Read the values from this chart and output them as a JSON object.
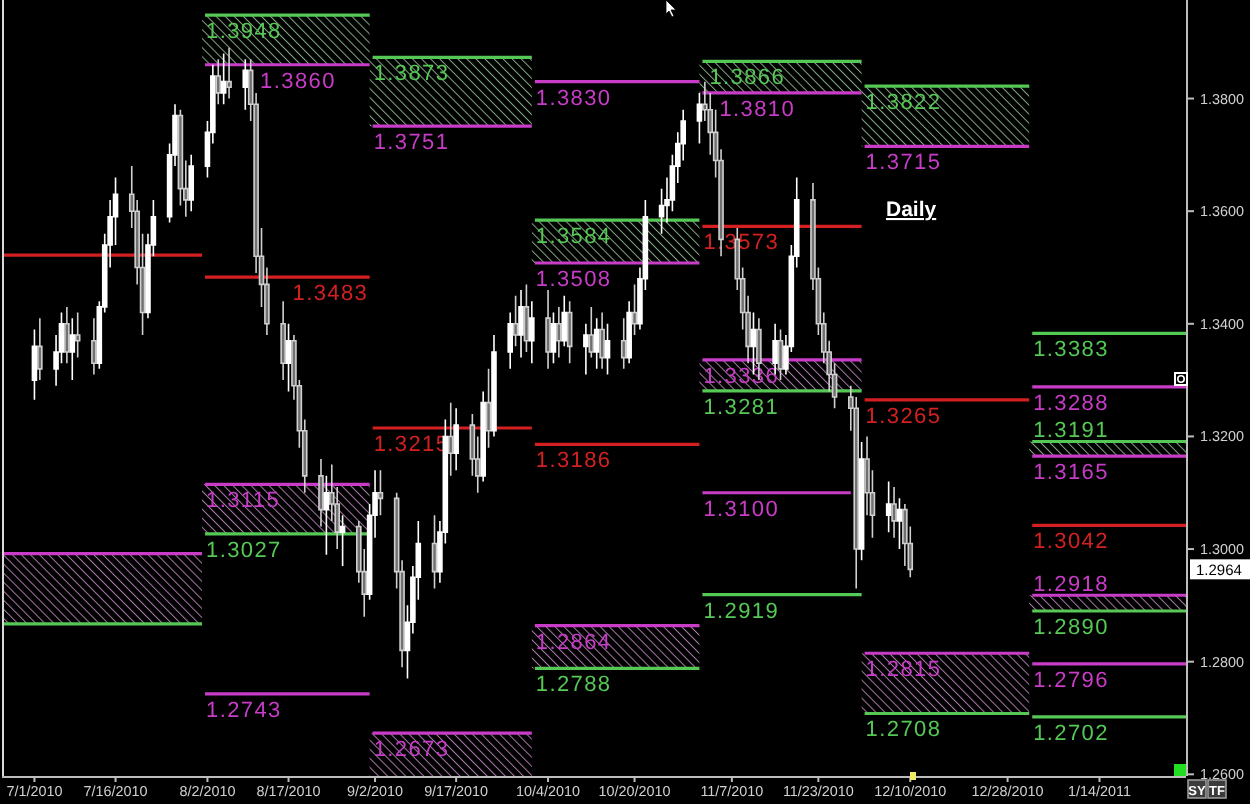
{
  "chart_data": {
    "type": "candlestick",
    "title": "Daily",
    "x": [
      "2010-07-01",
      "2010-07-02",
      "2010-07-05",
      "2010-07-06",
      "2010-07-07",
      "2010-07-08",
      "2010-07-09",
      "2010-07-12",
      "2010-07-13",
      "2010-07-14",
      "2010-07-15",
      "2010-07-16",
      "2010-07-19",
      "2010-07-20",
      "2010-07-21",
      "2010-07-22",
      "2010-07-23",
      "2010-07-26",
      "2010-07-27",
      "2010-07-28",
      "2010-07-29",
      "2010-07-30",
      "2010-08-02",
      "2010-08-03",
      "2010-08-04",
      "2010-08-05",
      "2010-08-06",
      "2010-08-09",
      "2010-08-10",
      "2010-08-11",
      "2010-08-12",
      "2010-08-13",
      "2010-08-16",
      "2010-08-17",
      "2010-08-18",
      "2010-08-19",
      "2010-08-20",
      "2010-08-23",
      "2010-08-24",
      "2010-08-25",
      "2010-08-26",
      "2010-08-27",
      "2010-08-30",
      "2010-08-31",
      "2010-09-01",
      "2010-09-02",
      "2010-09-03",
      "2010-09-06",
      "2010-09-07",
      "2010-09-08",
      "2010-09-09",
      "2010-09-10",
      "2010-09-13",
      "2010-09-14",
      "2010-09-15",
      "2010-09-16",
      "2010-09-17",
      "2010-09-20",
      "2010-09-21",
      "2010-09-22",
      "2010-09-23",
      "2010-09-24",
      "2010-09-27",
      "2010-09-28",
      "2010-09-29",
      "2010-09-30",
      "2010-10-01",
      "2010-10-04",
      "2010-10-05",
      "2010-10-06",
      "2010-10-07",
      "2010-10-08",
      "2010-10-11",
      "2010-10-12",
      "2010-10-13",
      "2010-10-14",
      "2010-10-15",
      "2010-10-18",
      "2010-10-19",
      "2010-10-20",
      "2010-10-21",
      "2010-10-22",
      "2010-10-25",
      "2010-10-26",
      "2010-10-27",
      "2010-10-28",
      "2010-10-29",
      "2010-11-01",
      "2010-11-02",
      "2010-11-03",
      "2010-11-04",
      "2010-11-05",
      "2010-11-08",
      "2010-11-09",
      "2010-11-10",
      "2010-11-11",
      "2010-11-12",
      "2010-11-15",
      "2010-11-16",
      "2010-11-17",
      "2010-11-18",
      "2010-11-19",
      "2010-11-22",
      "2010-11-23",
      "2010-11-24",
      "2010-11-25",
      "2010-11-26",
      "2010-11-29",
      "2010-11-30",
      "2010-12-01",
      "2010-12-02",
      "2010-12-03",
      "2010-12-06",
      "2010-12-07",
      "2010-12-08",
      "2010-12-09",
      "2010-12-10"
    ],
    "ohlc": [
      [
        1.33,
        1.339,
        1.3265,
        1.336
      ],
      [
        1.336,
        1.341,
        1.33,
        1.332
      ],
      [
        1.332,
        1.338,
        1.329,
        1.335
      ],
      [
        1.335,
        1.342,
        1.333,
        1.34
      ],
      [
        1.34,
        1.343,
        1.333,
        1.335
      ],
      [
        1.335,
        1.341,
        1.33,
        1.338
      ],
      [
        1.338,
        1.342,
        1.334,
        1.337
      ],
      [
        1.337,
        1.341,
        1.331,
        1.333
      ],
      [
        1.333,
        1.344,
        1.332,
        1.343
      ],
      [
        1.343,
        1.356,
        1.342,
        1.354
      ],
      [
        1.354,
        1.362,
        1.35,
        1.359
      ],
      [
        1.359,
        1.366,
        1.354,
        1.363
      ],
      [
        1.363,
        1.368,
        1.357,
        1.36
      ],
      [
        1.36,
        1.362,
        1.347,
        1.35
      ],
      [
        1.35,
        1.356,
        1.338,
        1.342
      ],
      [
        1.342,
        1.356,
        1.341,
        1.354
      ],
      [
        1.354,
        1.362,
        1.352,
        1.359
      ],
      [
        1.359,
        1.372,
        1.358,
        1.37
      ],
      [
        1.37,
        1.379,
        1.368,
        1.377
      ],
      [
        1.377,
        1.378,
        1.361,
        1.364
      ],
      [
        1.364,
        1.369,
        1.359,
        1.362
      ],
      [
        1.362,
        1.37,
        1.36,
        1.368
      ],
      [
        1.368,
        1.376,
        1.366,
        1.374
      ],
      [
        1.374,
        1.386,
        1.372,
        1.384
      ],
      [
        1.384,
        1.387,
        1.379,
        1.381
      ],
      [
        1.381,
        1.388,
        1.379,
        1.383
      ],
      [
        1.383,
        1.389,
        1.38,
        1.382
      ],
      [
        1.382,
        1.387,
        1.378,
        1.385
      ],
      [
        1.385,
        1.387,
        1.376,
        1.379
      ],
      [
        1.379,
        1.381,
        1.349,
        1.352
      ],
      [
        1.352,
        1.357,
        1.343,
        1.347
      ],
      [
        1.347,
        1.35,
        1.338,
        1.34
      ],
      [
        1.34,
        1.344,
        1.33,
        1.333
      ],
      [
        1.333,
        1.34,
        1.328,
        1.337
      ],
      [
        1.337,
        1.338,
        1.3265,
        1.329
      ],
      [
        1.329,
        1.33,
        1.318,
        1.321
      ],
      [
        1.321,
        1.323,
        1.31,
        1.313
      ],
      [
        1.313,
        1.316,
        1.304,
        1.307
      ],
      [
        1.307,
        1.313,
        1.299,
        1.31
      ],
      [
        1.31,
        1.315,
        1.305,
        1.308
      ],
      [
        1.308,
        1.311,
        1.3,
        1.303
      ],
      [
        1.303,
        1.306,
        1.297,
        1.304
      ],
      [
        1.304,
        1.305,
        1.294,
        1.296
      ],
      [
        1.296,
        1.3,
        1.288,
        1.292
      ],
      [
        1.292,
        1.308,
        1.291,
        1.306
      ],
      [
        1.306,
        1.314,
        1.302,
        1.31
      ],
      [
        1.31,
        1.314,
        1.306,
        1.309
      ],
      [
        1.309,
        1.31,
        1.293,
        1.296
      ],
      [
        1.296,
        1.298,
        1.279,
        1.282
      ],
      [
        1.282,
        1.29,
        1.277,
        1.287
      ],
      [
        1.287,
        1.297,
        1.285,
        1.295
      ],
      [
        1.295,
        1.305,
        1.291,
        1.301
      ],
      [
        1.301,
        1.306,
        1.293,
        1.296
      ],
      [
        1.296,
        1.305,
        1.294,
        1.303
      ],
      [
        1.303,
        1.323,
        1.301,
        1.32
      ],
      [
        1.32,
        1.326,
        1.313,
        1.317
      ],
      [
        1.317,
        1.325,
        1.314,
        1.322
      ],
      [
        1.322,
        1.324,
        1.313,
        1.316
      ],
      [
        1.316,
        1.32,
        1.31,
        1.313
      ],
      [
        1.313,
        1.328,
        1.312,
        1.326
      ],
      [
        1.326,
        1.332,
        1.318,
        1.321
      ],
      [
        1.321,
        1.338,
        1.32,
        1.335
      ],
      [
        1.335,
        1.342,
        1.332,
        1.34
      ],
      [
        1.34,
        1.345,
        1.336,
        1.338
      ],
      [
        1.338,
        1.346,
        1.334,
        1.343
      ],
      [
        1.343,
        1.347,
        1.335,
        1.337
      ],
      [
        1.337,
        1.344,
        1.333,
        1.341
      ],
      [
        1.341,
        1.346,
        1.332,
        1.335
      ],
      [
        1.335,
        1.342,
        1.333,
        1.34
      ],
      [
        1.34,
        1.343,
        1.334,
        1.337
      ],
      [
        1.337,
        1.345,
        1.336,
        1.342
      ],
      [
        1.342,
        1.344,
        1.333,
        1.336
      ],
      [
        1.336,
        1.34,
        1.331,
        1.338
      ],
      [
        1.338,
        1.343,
        1.334,
        1.335
      ],
      [
        1.335,
        1.341,
        1.332,
        1.339
      ],
      [
        1.339,
        1.342,
        1.332,
        1.334
      ],
      [
        1.334,
        1.34,
        1.331,
        1.337
      ],
      [
        1.337,
        1.341,
        1.332,
        1.334
      ],
      [
        1.334,
        1.344,
        1.333,
        1.342
      ],
      [
        1.342,
        1.347,
        1.338,
        1.34
      ],
      [
        1.34,
        1.35,
        1.339,
        1.348
      ],
      [
        1.348,
        1.362,
        1.346,
        1.359
      ],
      [
        1.359,
        1.364,
        1.356,
        1.361
      ],
      [
        1.361,
        1.366,
        1.358,
        1.362
      ],
      [
        1.362,
        1.37,
        1.36,
        1.368
      ],
      [
        1.368,
        1.374,
        1.365,
        1.372
      ],
      [
        1.372,
        1.378,
        1.369,
        1.376
      ],
      [
        1.376,
        1.381,
        1.372,
        1.379
      ],
      [
        1.379,
        1.383,
        1.376,
        1.378
      ],
      [
        1.378,
        1.381,
        1.37,
        1.374
      ],
      [
        1.374,
        1.378,
        1.366,
        1.369
      ],
      [
        1.369,
        1.371,
        1.352,
        1.355
      ],
      [
        1.355,
        1.357,
        1.346,
        1.348
      ],
      [
        1.348,
        1.35,
        1.339,
        1.342
      ],
      [
        1.342,
        1.345,
        1.333,
        1.336
      ],
      [
        1.336,
        1.342,
        1.331,
        1.339
      ],
      [
        1.339,
        1.341,
        1.33,
        1.333
      ],
      [
        1.333,
        1.34,
        1.331,
        1.337
      ],
      [
        1.337,
        1.339,
        1.33,
        1.332
      ],
      [
        1.332,
        1.338,
        1.331,
        1.336
      ],
      [
        1.336,
        1.354,
        1.335,
        1.352
      ],
      [
        1.352,
        1.366,
        1.35,
        1.362
      ],
      [
        1.362,
        1.365,
        1.346,
        1.348
      ],
      [
        1.348,
        1.35,
        1.338,
        1.34
      ],
      [
        1.34,
        1.342,
        1.333,
        1.335
      ],
      [
        1.335,
        1.337,
        1.328,
        1.331
      ],
      [
        1.331,
        1.333,
        1.325,
        1.327
      ],
      [
        1.327,
        1.329,
        1.321,
        1.325
      ],
      [
        1.325,
        1.327,
        1.293,
        1.3
      ],
      [
        1.3,
        1.319,
        1.298,
        1.316
      ],
      [
        1.316,
        1.32,
        1.306,
        1.31
      ],
      [
        1.31,
        1.314,
        1.302,
        1.306
      ],
      [
        1.306,
        1.312,
        1.303,
        1.308
      ],
      [
        1.308,
        1.311,
        1.302,
        1.305
      ],
      [
        1.305,
        1.309,
        1.3,
        1.307
      ],
      [
        1.307,
        1.308,
        1.297,
        1.301
      ],
      [
        1.301,
        1.304,
        1.295,
        1.2964
      ]
    ],
    "series": [
      {
        "type": "line",
        "x": [
          "2010-06-25",
          "2010-08-01"
        ],
        "values": [
          1.3522,
          1.3522
        ],
        "color": "#d42020"
      },
      {
        "type": "line",
        "x": [
          "2010-06-25",
          "2010-08-01"
        ],
        "values": [
          1.2992,
          1.2992
        ],
        "lower": [
          1.2867,
          1.2867
        ],
        "upper": [
          1.2992,
          1.2992
        ],
        "color": "#c83cc8"
      },
      {
        "type": "line",
        "x": [
          "2010-06-25",
          "2010-08-01"
        ],
        "values": [
          1.2867,
          1.2867
        ],
        "color": "#55c855"
      },
      {
        "type": "line",
        "x": [
          "2010-08-01",
          "2010-09-01"
        ],
        "values": [
          1.3948,
          1.3948
        ],
        "lower": [
          1.386,
          1.386
        ],
        "upper": [
          1.3948,
          1.3948
        ],
        "color": "#55c855"
      },
      {
        "type": "line",
        "x": [
          "2010-08-01",
          "2010-09-01"
        ],
        "values": [
          1.386,
          1.386
        ],
        "color": "#c83cc8"
      },
      {
        "type": "line",
        "x": [
          "2010-08-01",
          "2010-09-01"
        ],
        "values": [
          1.3483,
          1.3483
        ],
        "color": "#d42020"
      },
      {
        "type": "line",
        "x": [
          "2010-08-01",
          "2010-09-01"
        ],
        "values": [
          1.3115,
          1.3115
        ],
        "lower": [
          1.3027,
          1.3027
        ],
        "upper": [
          1.3115,
          1.3115
        ],
        "color": "#c83cc8"
      },
      {
        "type": "line",
        "x": [
          "2010-08-01",
          "2010-09-01"
        ],
        "values": [
          1.3027,
          1.3027
        ],
        "color": "#55c855"
      },
      {
        "type": "line",
        "x": [
          "2010-08-01",
          "2010-09-01"
        ],
        "values": [
          1.2743,
          1.2743
        ],
        "color": "#c83cc8"
      },
      {
        "type": "line",
        "x": [
          "2010-09-01",
          "2010-10-01"
        ],
        "values": [
          1.3873,
          1.3873
        ],
        "lower": [
          1.3751,
          1.3751
        ],
        "upper": [
          1.3873,
          1.3873
        ],
        "color": "#55c855"
      },
      {
        "type": "line",
        "x": [
          "2010-09-01",
          "2010-10-01"
        ],
        "values": [
          1.3751,
          1.3751
        ],
        "color": "#c83cc8"
      },
      {
        "type": "line",
        "x": [
          "2010-09-01",
          "2010-10-01"
        ],
        "values": [
          1.3215,
          1.3215
        ],
        "color": "#d42020"
      },
      {
        "type": "line",
        "x": [
          "2010-09-01",
          "2010-10-01"
        ],
        "values": [
          1.2673,
          1.2673
        ],
        "lower": [
          1.2597,
          1.2597
        ],
        "upper": [
          1.2673,
          1.2673
        ],
        "color": "#c83cc8"
      },
      {
        "type": "line",
        "x": [
          "2010-10-01",
          "2010-11-01"
        ],
        "values": [
          1.383,
          1.383
        ],
        "color": "#c83cc8"
      },
      {
        "type": "line",
        "x": [
          "2010-10-01",
          "2010-11-01"
        ],
        "values": [
          1.3584,
          1.3584
        ],
        "lower": [
          1.3508,
          1.3508
        ],
        "upper": [
          1.3584,
          1.3584
        ],
        "color": "#55c855"
      },
      {
        "type": "line",
        "x": [
          "2010-10-01",
          "2010-11-01"
        ],
        "values": [
          1.3508,
          1.3508
        ],
        "color": "#c83cc8"
      },
      {
        "type": "line",
        "x": [
          "2010-10-01",
          "2010-11-01"
        ],
        "values": [
          1.3186,
          1.3186
        ],
        "color": "#d42020"
      },
      {
        "type": "line",
        "x": [
          "2010-10-01",
          "2010-11-01"
        ],
        "values": [
          1.2864,
          1.2864
        ],
        "lower": [
          1.2788,
          1.2788
        ],
        "upper": [
          1.2864,
          1.2864
        ],
        "color": "#c83cc8"
      },
      {
        "type": "line",
        "x": [
          "2010-10-01",
          "2010-11-01"
        ],
        "values": [
          1.2788,
          1.2788
        ],
        "color": "#55c855"
      },
      {
        "type": "line",
        "x": [
          "2010-11-01",
          "2010-12-01"
        ],
        "values": [
          1.3866,
          1.3866
        ],
        "lower": [
          1.381,
          1.381
        ],
        "upper": [
          1.3866,
          1.3866
        ],
        "color": "#55c855"
      },
      {
        "type": "line",
        "x": [
          "2010-11-01",
          "2010-12-01"
        ],
        "values": [
          1.381,
          1.381
        ],
        "color": "#c83cc8"
      },
      {
        "type": "line",
        "x": [
          "2010-11-01",
          "2010-12-01"
        ],
        "values": [
          1.3573,
          1.3573
        ],
        "color": "#d42020"
      },
      {
        "type": "line",
        "x": [
          "2010-11-01",
          "2010-12-01"
        ],
        "values": [
          1.3336,
          1.3336
        ],
        "lower": [
          1.3281,
          1.3281
        ],
        "upper": [
          1.3336,
          1.3336
        ],
        "color": "#c83cc8"
      },
      {
        "type": "line",
        "x": [
          "2010-11-01",
          "2010-12-01"
        ],
        "values": [
          1.3281,
          1.3281
        ],
        "color": "#55c855"
      },
      {
        "type": "line",
        "x": [
          "2010-11-01",
          "2010-11-29"
        ],
        "values": [
          1.31,
          1.31
        ],
        "color": "#c83cc8"
      },
      {
        "type": "line",
        "x": [
          "2010-11-01",
          "2010-12-01"
        ],
        "values": [
          1.2919,
          1.2919
        ],
        "color": "#55c855"
      },
      {
        "type": "line",
        "x": [
          "2010-12-01",
          "2011-01-01"
        ],
        "values": [
          1.3822,
          1.3822
        ],
        "lower": [
          1.3715,
          1.3715
        ],
        "upper": [
          1.3822,
          1.3822
        ],
        "color": "#55c855"
      },
      {
        "type": "line",
        "x": [
          "2010-12-01",
          "2011-01-01"
        ],
        "values": [
          1.3715,
          1.3715
        ],
        "color": "#c83cc8"
      },
      {
        "type": "line",
        "x": [
          "2010-12-01",
          "2011-01-01"
        ],
        "values": [
          1.3265,
          1.3265
        ],
        "color": "#d42020"
      },
      {
        "type": "line",
        "x": [
          "2010-12-01",
          "2011-01-01"
        ],
        "values": [
          1.2815,
          1.2815
        ],
        "lower": [
          1.2708,
          1.2708
        ],
        "upper": [
          1.2815,
          1.2815
        ],
        "color": "#c83cc8"
      },
      {
        "type": "line",
        "x": [
          "2010-12-01",
          "2011-01-01"
        ],
        "values": [
          1.2708,
          1.2708
        ],
        "color": "#55c855"
      },
      {
        "type": "line",
        "x": [
          "2011-01-01",
          "2011-01-30"
        ],
        "values": [
          1.3383,
          1.3383
        ],
        "color": "#55c855"
      },
      {
        "type": "line",
        "x": [
          "2011-01-01",
          "2011-01-30"
        ],
        "values": [
          1.3288,
          1.3288
        ],
        "color": "#c83cc8"
      },
      {
        "type": "line",
        "x": [
          "2011-01-01",
          "2011-01-30"
        ],
        "values": [
          1.3191,
          1.3191
        ],
        "lower": [
          1.3165,
          1.3165
        ],
        "upper": [
          1.3191,
          1.3191
        ],
        "color": "#55c855"
      },
      {
        "type": "line",
        "x": [
          "2011-01-01",
          "2011-01-30"
        ],
        "values": [
          1.3165,
          1.3165
        ],
        "color": "#c83cc8"
      },
      {
        "type": "line",
        "x": [
          "2011-01-01",
          "2011-01-30"
        ],
        "values": [
          1.3042,
          1.3042
        ],
        "color": "#d42020"
      },
      {
        "type": "line",
        "x": [
          "2011-01-01",
          "2011-01-30"
        ],
        "values": [
          1.2918,
          1.2918
        ],
        "lower": [
          1.289,
          1.289
        ],
        "upper": [
          1.2918,
          1.2918
        ],
        "color": "#c83cc8"
      },
      {
        "type": "line",
        "x": [
          "2011-01-01",
          "2011-01-30"
        ],
        "values": [
          1.289,
          1.289
        ],
        "color": "#55c855"
      },
      {
        "type": "line",
        "x": [
          "2011-01-01",
          "2011-01-30"
        ],
        "values": [
          1.2796,
          1.2796
        ],
        "color": "#c83cc8"
      },
      {
        "type": "line",
        "x": [
          "2011-01-01",
          "2011-01-30"
        ],
        "values": [
          1.2702,
          1.2702
        ],
        "color": "#55c855"
      }
    ],
    "annotations": [
      {
        "text": "1.3948",
        "x": "2010-08-01",
        "y": 1.3948
      },
      {
        "text": "1.3860",
        "x": "2010-08-11",
        "y": 1.386
      },
      {
        "text": "1.3483",
        "x": "2010-08-17",
        "y": 1.3483
      },
      {
        "text": "1.3115",
        "x": "2010-08-01",
        "y": 1.3115
      },
      {
        "text": "1.3027",
        "x": "2010-08-01",
        "y": 1.3027
      },
      {
        "text": "1.2743",
        "x": "2010-08-01",
        "y": 1.2743
      },
      {
        "text": "1.3873",
        "x": "2010-09-01",
        "y": 1.3873
      },
      {
        "text": "1.3751",
        "x": "2010-09-01",
        "y": 1.3751
      },
      {
        "text": "1.3215",
        "x": "2010-09-01",
        "y": 1.3215
      },
      {
        "text": "1.2673",
        "x": "2010-09-01",
        "y": 1.2673
      },
      {
        "text": "1.3830",
        "x": "2010-10-01",
        "y": 1.383
      },
      {
        "text": "1.3584",
        "x": "2010-10-01",
        "y": 1.3584
      },
      {
        "text": "1.3508",
        "x": "2010-10-01",
        "y": 1.3508
      },
      {
        "text": "1.3186",
        "x": "2010-10-01",
        "y": 1.3186
      },
      {
        "text": "1.2864",
        "x": "2010-10-01",
        "y": 1.2864
      },
      {
        "text": "1.2788",
        "x": "2010-10-01",
        "y": 1.2788
      },
      {
        "text": "1.3866",
        "x": "2010-11-01",
        "y": 1.3866
      },
      {
        "text": "1.3810",
        "x": "2010-11-01",
        "y": 1.381
      },
      {
        "text": "1.3573",
        "x": "2010-11-01",
        "y": 1.3573
      },
      {
        "text": "1.3336",
        "x": "2010-11-01",
        "y": 1.3336
      },
      {
        "text": "1.3281",
        "x": "2010-11-01",
        "y": 1.3281
      },
      {
        "text": "1.3100",
        "x": "2010-11-01",
        "y": 1.31
      },
      {
        "text": "1.2919",
        "x": "2010-11-01",
        "y": 1.2919
      },
      {
        "text": "1.3822",
        "x": "2010-12-01",
        "y": 1.3822
      },
      {
        "text": "1.3715",
        "x": "2010-12-01",
        "y": 1.3715
      },
      {
        "text": "1.3265",
        "x": "2010-12-01",
        "y": 1.3265
      },
      {
        "text": "1.2815",
        "x": "2010-12-01",
        "y": 1.2815
      },
      {
        "text": "1.2708",
        "x": "2010-12-01",
        "y": 1.2708
      },
      {
        "text": "1.3383",
        "x": "2011-01-01",
        "y": 1.3383
      },
      {
        "text": "1.3288",
        "x": "2011-01-01",
        "y": 1.3288
      },
      {
        "text": "1.3191",
        "x": "2011-01-01",
        "y": 1.3191
      },
      {
        "text": "1.3165",
        "x": "2011-01-01",
        "y": 1.3165
      },
      {
        "text": "1.3042",
        "x": "2011-01-01",
        "y": 1.3042
      },
      {
        "text": "1.2918",
        "x": "2011-01-01",
        "y": 1.2918
      },
      {
        "text": "1.2890",
        "x": "2011-01-01",
        "y": 1.289
      },
      {
        "text": "1.2796",
        "x": "2011-01-01",
        "y": 1.2796
      },
      {
        "text": "1.2702",
        "x": "2011-01-01",
        "y": 1.2702
      },
      {
        "text": "1.2964",
        "y": 1.2964
      },
      "SY",
      "TF"
    ],
    "xlim": [
      "2010-06-25",
      "2011-01-30"
    ],
    "ylim": [
      1.2597,
      1.3975
    ],
    "xticks": [
      {
        "value": "2010-07-01",
        "label": "7/1/2010"
      },
      {
        "value": "2010-07-16",
        "label": "7/16/2010"
      },
      {
        "value": "2010-08-02",
        "label": "8/2/2010"
      },
      {
        "value": "2010-08-17",
        "label": "8/17/2010"
      },
      {
        "value": "2010-09-02",
        "label": "9/2/2010"
      },
      {
        "value": "2010-09-17",
        "label": "9/17/2010"
      },
      {
        "value": "2010-10-04",
        "label": "10/4/2010"
      },
      {
        "value": "2010-10-20",
        "label": "10/20/2010"
      },
      {
        "value": "2010-11-07",
        "label": "11/7/2010"
      },
      {
        "value": "2010-11-23",
        "label": "11/23/2010"
      },
      {
        "value": "2010-12-10",
        "label": "12/10/2010"
      },
      {
        "value": "2010-12-28",
        "label": "12/28/2010"
      },
      {
        "value": "2011-01-14",
        "label": "1/14/2011"
      }
    ],
    "yticks": [
      {
        "value": 1.26,
        "label": "1.2600"
      },
      {
        "value": 1.28,
        "label": "1.2800"
      },
      {
        "value": 1.3,
        "label": "1.3000"
      },
      {
        "value": 1.32,
        "label": "1.3200"
      },
      {
        "value": 1.34,
        "label": "1.3400"
      },
      {
        "value": 1.36,
        "label": "1.3600"
      },
      {
        "value": 1.38,
        "label": "1.3800"
      }
    ]
  }
}
